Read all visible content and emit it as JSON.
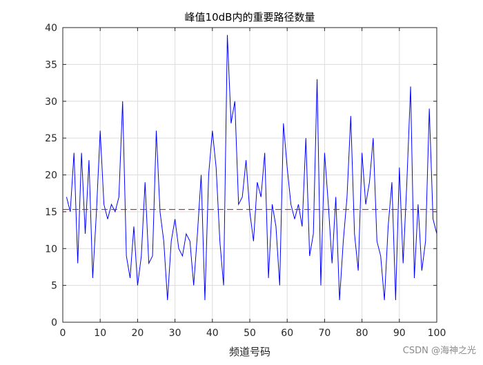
{
  "chart_data": {
    "type": "line",
    "title": "峰值10dB内的重要路径数量",
    "xlabel": "频道号码",
    "ylabel": "",
    "xlim": [
      0,
      100
    ],
    "ylim": [
      0,
      40
    ],
    "xticks": [
      0,
      10,
      20,
      30,
      40,
      50,
      60,
      70,
      80,
      90,
      100
    ],
    "yticks": [
      0,
      5,
      10,
      15,
      20,
      25,
      30,
      35,
      40
    ],
    "grid": true,
    "series": [
      {
        "color": "#0000ff",
        "x": [
          1,
          2,
          3,
          4,
          5,
          6,
          7,
          8,
          9,
          10,
          11,
          12,
          13,
          14,
          15,
          16,
          17,
          18,
          19,
          20,
          21,
          22,
          23,
          24,
          25,
          26,
          27,
          28,
          29,
          30,
          31,
          32,
          33,
          34,
          35,
          36,
          37,
          38,
          39,
          40,
          41,
          42,
          43,
          44,
          45,
          46,
          47,
          48,
          49,
          50,
          51,
          52,
          53,
          54,
          55,
          56,
          57,
          58,
          59,
          60,
          61,
          62,
          63,
          64,
          65,
          66,
          67,
          68,
          69,
          70,
          71,
          72,
          73,
          74,
          75,
          76,
          77,
          78,
          79,
          80,
          81,
          82,
          83,
          84,
          85,
          86,
          87,
          88,
          89,
          90,
          91,
          92,
          93,
          94,
          95,
          96,
          97,
          98,
          99,
          100
        ],
        "values": [
          17,
          15,
          23,
          8,
          23,
          12,
          22,
          6,
          15,
          26,
          16,
          14,
          16,
          15,
          17,
          30,
          9,
          6,
          13,
          5,
          9,
          19,
          8,
          9,
          26,
          15,
          11,
          3,
          11,
          14,
          10,
          9,
          12,
          11,
          5,
          12,
          20,
          3,
          20,
          26,
          21,
          11,
          5,
          39,
          27,
          30,
          16,
          17,
          22,
          15,
          11,
          19,
          17,
          23,
          6,
          16,
          13,
          5,
          27,
          21,
          16,
          14,
          16,
          13,
          25,
          9,
          12,
          33,
          5,
          23,
          16,
          8,
          17,
          3,
          11,
          17,
          28,
          12,
          7,
          23,
          16,
          19,
          25,
          11,
          9,
          3,
          13,
          19,
          3,
          21,
          8,
          19,
          32,
          6,
          16,
          7,
          11,
          29,
          14,
          12
        ]
      },
      {
        "color": "#cc0000",
        "style": "dashed",
        "x": [
          0,
          100
        ],
        "values": [
          15.3,
          15.3
        ]
      }
    ]
  },
  "watermark": "CSDN @海神之光"
}
